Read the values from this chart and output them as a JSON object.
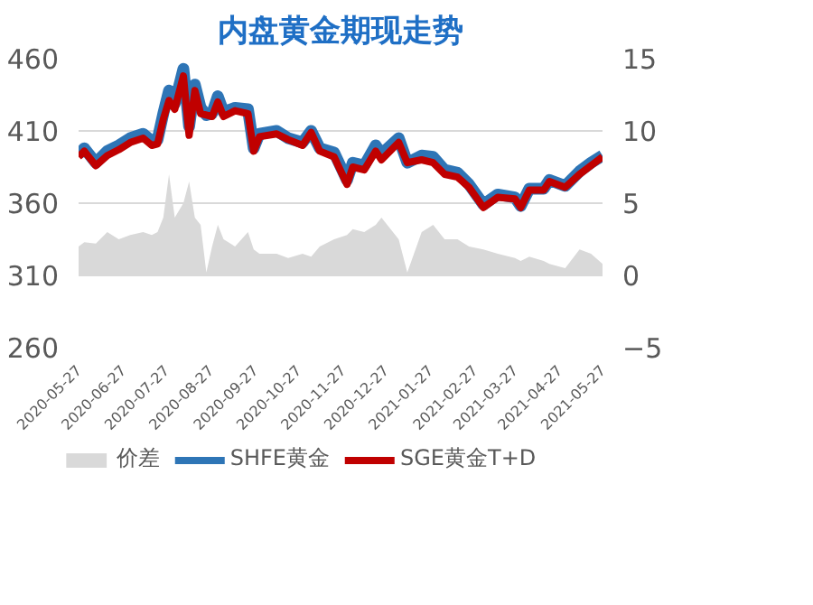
{
  "chart_data": {
    "type": "line",
    "title": "内盘黄金期现走势",
    "x": [
      "2020-05-27",
      "2020-05-31",
      "2020-06-08",
      "2020-06-16",
      "2020-06-24",
      "2020-07-02",
      "2020-07-11",
      "2020-07-17",
      "2020-07-21",
      "2020-07-25",
      "2020-07-29",
      "2020-08-02",
      "2020-08-08",
      "2020-08-12",
      "2020-08-16",
      "2020-08-20",
      "2020-08-24",
      "2020-08-28",
      "2020-09-01",
      "2020-09-05",
      "2020-09-13",
      "2020-09-22",
      "2020-09-26",
      "2020-09-30",
      "2020-10-12",
      "2020-10-20",
      "2020-10-30",
      "2020-11-05",
      "2020-11-11",
      "2020-11-21",
      "2020-11-30",
      "2020-12-04",
      "2020-12-12",
      "2020-12-20",
      "2020-12-24",
      "2021-01-05",
      "2021-01-11",
      "2021-01-21",
      "2021-01-29",
      "2021-02-06",
      "2021-02-15",
      "2021-02-23",
      "2021-03-05",
      "2021-03-15",
      "2021-03-27",
      "2021-03-31",
      "2021-04-06",
      "2021-04-16",
      "2021-04-20",
      "2021-05-01",
      "2021-05-11",
      "2021-05-19",
      "2021-05-27"
    ],
    "series": [
      {
        "name": "价差",
        "type": "area",
        "axis": "y2",
        "color": "#d9d9d9",
        "values": [
          2.0,
          2.3,
          2.2,
          3.0,
          2.5,
          2.8,
          3.0,
          2.8,
          3.0,
          4.0,
          7.0,
          4.0,
          5.0,
          6.5,
          4.0,
          3.5,
          0.2,
          2.0,
          3.5,
          2.5,
          2.0,
          3.0,
          1.8,
          1.5,
          1.5,
          1.2,
          1.5,
          1.3,
          2.0,
          2.5,
          2.8,
          3.2,
          3.0,
          3.5,
          4.0,
          2.5,
          0.2,
          3.0,
          3.5,
          2.5,
          2.5,
          2.0,
          1.8,
          1.5,
          1.2,
          1.0,
          1.3,
          1.0,
          0.8,
          0.5,
          1.8,
          1.5,
          0.8
        ]
      },
      {
        "name": "SHFE黄金",
        "color": "#2e75b6",
        "values": [
          394,
          398,
          388,
          396,
          400,
          405,
          408,
          403,
          404,
          422,
          438,
          429,
          453,
          413,
          442,
          426,
          421,
          422,
          434,
          423,
          426,
          425,
          398,
          408,
          410,
          405,
          402,
          410,
          398,
          395,
          376,
          388,
          386,
          400,
          394,
          405,
          388,
          393,
          392,
          383,
          381,
          373,
          359,
          366,
          364,
          358,
          370,
          370,
          376,
          372,
          382,
          388,
          393
        ]
      },
      {
        "name": "SGE黄金T+D",
        "color": "#c00000",
        "values": [
          392,
          396,
          386,
          393,
          397,
          402,
          405,
          400,
          401,
          418,
          431,
          425,
          448,
          407,
          438,
          422,
          421,
          420,
          430,
          420,
          424,
          422,
          396,
          406,
          408,
          404,
          400,
          409,
          396,
          392,
          373,
          385,
          383,
          396,
          390,
          402,
          388,
          390,
          388,
          380,
          378,
          371,
          357,
          364,
          363,
          357,
          369,
          369,
          375,
          371,
          380,
          386,
          392
        ]
      }
    ],
    "ylim": [
      260,
      460
    ],
    "yticks": [
      260,
      310,
      360,
      410,
      460
    ],
    "y2lim": [
      -5,
      15
    ],
    "y2ticks": [
      -5,
      0,
      5,
      10,
      15
    ],
    "xlim": [
      "2020-05-27",
      "2021-05-27"
    ],
    "xticks": [
      "2020-05-27",
      "2020-06-27",
      "2020-07-27",
      "2020-08-27",
      "2020-09-27",
      "2020-10-27",
      "2020-11-27",
      "2020-12-27",
      "2021-01-27",
      "2021-02-27",
      "2021-03-27",
      "2021-04-27",
      "2021-05-27"
    ],
    "grid": "y",
    "legend": "bottom",
    "line_style": "solid",
    "marker": "none"
  }
}
